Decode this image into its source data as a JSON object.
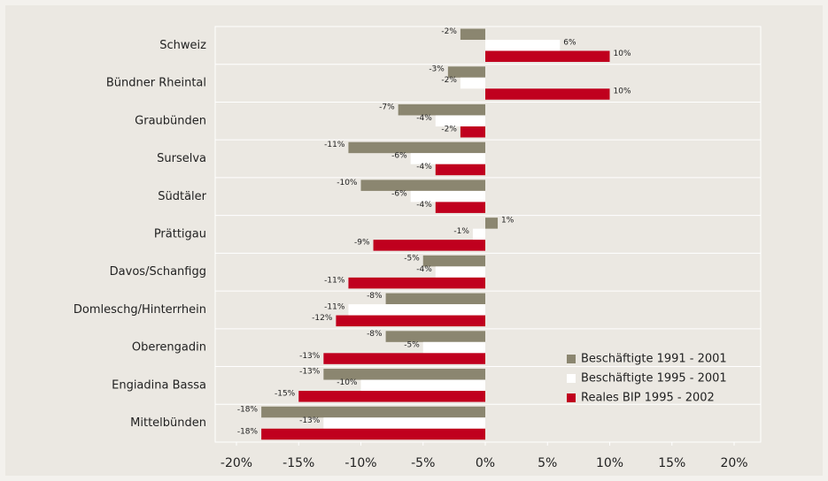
{
  "chart_data": {
    "type": "hbar",
    "categories": [
      "Schweiz",
      "Bündner Rheintal",
      "Graubünden",
      "Surselva",
      "Südtäler",
      "Prättigau",
      "Davos/Schanfigg",
      "Domleschg/Hinterrhein",
      "Oberengadin",
      "Engiadina Bassa",
      "Mittelbünden"
    ],
    "series": [
      {
        "name": "Beschäftigte 1991 - 2001",
        "color": "#8b8670",
        "values": [
          -2,
          -3,
          -7,
          -11,
          -10,
          1,
          -5,
          -8,
          -8,
          -13,
          -18
        ],
        "value_labels": [
          "-2%",
          "-3%",
          "-7%",
          "-11%",
          "-10%",
          "1%",
          "-5%",
          "-8%",
          "-8%",
          "-13%",
          "-18%"
        ]
      },
      {
        "name": "Beschäftigte 1995 - 2001",
        "color": "#ffffff",
        "values": [
          6,
          -2,
          -4,
          -6,
          -6,
          -1,
          -4,
          -11,
          -5,
          -10,
          -13
        ],
        "value_labels": [
          "6%",
          "-2%",
          "-4%",
          "-6%",
          "-6%",
          "-1%",
          "-4%",
          "-11%",
          "-5%",
          "-10%",
          "-13%"
        ]
      },
      {
        "name": "Reales BIP 1995 - 2002",
        "color": "#c0001e",
        "values": [
          10,
          10,
          -2,
          -4,
          -4,
          -9,
          -11,
          -12,
          -13,
          -15,
          -18
        ],
        "value_labels": [
          "10%",
          "10%",
          "-2%",
          "-4%",
          "-4%",
          "-9%",
          "-11%",
          "-12%",
          "-13%",
          "-15%",
          "-18%"
        ]
      }
    ],
    "xlim": [
      -20,
      20
    ],
    "xticks": [
      {
        "value": -20,
        "label": "-20%"
      },
      {
        "value": -15,
        "label": "-15%"
      },
      {
        "value": -10,
        "label": "-10%"
      },
      {
        "value": -5,
        "label": "-5%"
      },
      {
        "value": 0,
        "label": "0%"
      },
      {
        "value": 5,
        "label": "5%"
      },
      {
        "value": 10,
        "label": "10%"
      },
      {
        "value": 15,
        "label": "15%"
      },
      {
        "value": 20,
        "label": "20%"
      }
    ],
    "legend": "lower-right"
  }
}
